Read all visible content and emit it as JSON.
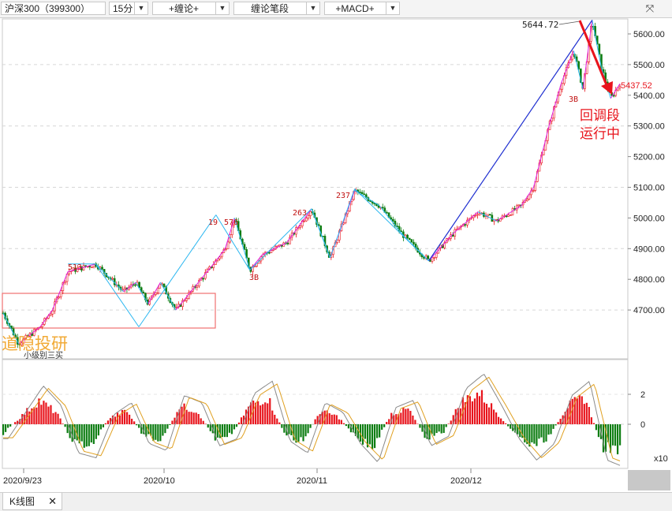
{
  "toolbar": {
    "symbol": "沪深300（399300）",
    "period": "15分",
    "indicator1": "+缠论+",
    "indicator2": "缠论笔段",
    "indicator3": "+MACD+",
    "dropdown_glyph": "▼",
    "expand_glyph": "⤧"
  },
  "bottom_tab": {
    "label": "K线图",
    "close_glyph": "✕"
  },
  "overlay": {
    "watermark": "道隐投研",
    "box_caption": "小级别三买",
    "status_line1": "回调段",
    "status_line2": "运行中"
  },
  "colors": {
    "up": "#e8141c",
    "down": "#0d7d12",
    "segment": "#1f2fd0",
    "bi_magenta": "#e020e0",
    "bi_cyan": "#29b6f0",
    "price_tag": "#e8141c",
    "box": "#f07070",
    "watermark": "#f0a020",
    "macd_line1": "#8a8a8a",
    "macd_line2": "#e0a020"
  },
  "chart_data": {
    "type": "candlestick",
    "title": "沪深300（399300）15分",
    "price_axis": {
      "ticks": [
        4700,
        4800,
        4900,
        5000,
        5100,
        5200,
        5300,
        5400,
        5500,
        5600
      ],
      "range": [
        4590,
        5665
      ]
    },
    "date_axis": {
      "labels": [
        "2020/9/23",
        "2020/10",
        "2020/11",
        "2020/12"
      ]
    },
    "last_price": 5437.52,
    "peak_label": "5644.72",
    "bi_labels": [
      "513",
      "19",
      "576",
      "3B",
      "263",
      "237",
      "3B"
    ],
    "trend_points": [
      {
        "t": 0.0,
        "p": 4690
      },
      {
        "t": 0.025,
        "p": 4590
      },
      {
        "t": 0.06,
        "p": 4645
      },
      {
        "t": 0.08,
        "p": 4700
      },
      {
        "t": 0.105,
        "p": 4825
      },
      {
        "t": 0.15,
        "p": 4850
      },
      {
        "t": 0.195,
        "p": 4760
      },
      {
        "t": 0.215,
        "p": 4790
      },
      {
        "t": 0.235,
        "p": 4720
      },
      {
        "t": 0.255,
        "p": 4790
      },
      {
        "t": 0.28,
        "p": 4700
      },
      {
        "t": 0.345,
        "p": 4860
      },
      {
        "t": 0.36,
        "p": 4900
      },
      {
        "t": 0.375,
        "p": 5000
      },
      {
        "t": 0.4,
        "p": 4830
      },
      {
        "t": 0.42,
        "p": 4880
      },
      {
        "t": 0.46,
        "p": 4920
      },
      {
        "t": 0.5,
        "p": 5030
      },
      {
        "t": 0.53,
        "p": 4870
      },
      {
        "t": 0.57,
        "p": 5090
      },
      {
        "t": 0.61,
        "p": 5040
      },
      {
        "t": 0.65,
        "p": 4940
      },
      {
        "t": 0.69,
        "p": 4860
      },
      {
        "t": 0.73,
        "p": 4950
      },
      {
        "t": 0.77,
        "p": 5020
      },
      {
        "t": 0.8,
        "p": 4990
      },
      {
        "t": 0.84,
        "p": 5040
      },
      {
        "t": 0.86,
        "p": 5100
      },
      {
        "t": 0.885,
        "p": 5300
      },
      {
        "t": 0.905,
        "p": 5440
      },
      {
        "t": 0.925,
        "p": 5545
      },
      {
        "t": 0.94,
        "p": 5420
      },
      {
        "t": 0.955,
        "p": 5645
      },
      {
        "t": 0.97,
        "p": 5490
      },
      {
        "t": 0.985,
        "p": 5390
      },
      {
        "t": 1.0,
        "p": 5437.52
      }
    ],
    "macd": {
      "ticks": [
        2,
        0
      ],
      "unit_label": "x10",
      "hist_wave": [
        -0.6,
        0.5,
        1.6,
        0.8,
        -1.2,
        -1.4,
        0.4,
        0.9,
        -0.8,
        -1.1,
        1.2,
        0.9,
        -0.9,
        -0.6,
        1.3,
        1.8,
        -0.7,
        -1.2,
        0.9,
        0.5,
        -0.8,
        -1.6,
        0.7,
        1.0,
        -0.9,
        -0.5,
        1.5,
        2.1,
        0.8,
        -0.6,
        -1.5,
        -0.8,
        1.2,
        1.8,
        -1.5,
        -1.8
      ]
    }
  }
}
